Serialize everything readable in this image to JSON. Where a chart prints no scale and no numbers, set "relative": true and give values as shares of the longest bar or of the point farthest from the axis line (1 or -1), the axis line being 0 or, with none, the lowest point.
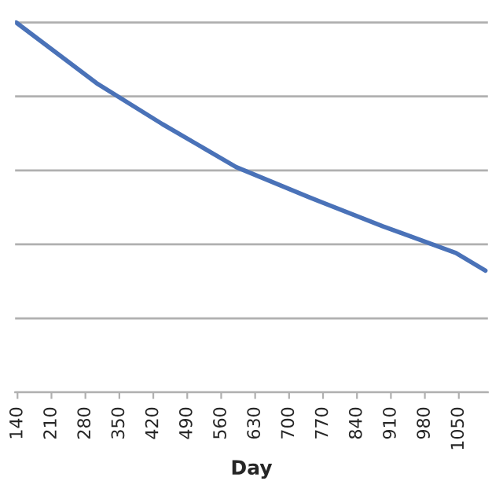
{
  "chart_data": {
    "type": "line",
    "xlabel": "Day",
    "relative": true,
    "grid": "y",
    "marker": "none",
    "line_style": "solid",
    "x": [
      137,
      303,
      439,
      591,
      742,
      893,
      1044,
      1105
    ],
    "series": [
      {
        "color": "#4a72b8",
        "values": [
          1,
          0.836,
          0.725,
          0.609,
          0.527,
          0.449,
          0.377,
          0.329
        ]
      }
    ],
    "xlim": [
      135,
      1110
    ],
    "xticks": [
      140,
      210,
      280,
      350,
      420,
      490,
      560,
      630,
      700,
      770,
      840,
      910,
      980,
      1050
    ]
  }
}
